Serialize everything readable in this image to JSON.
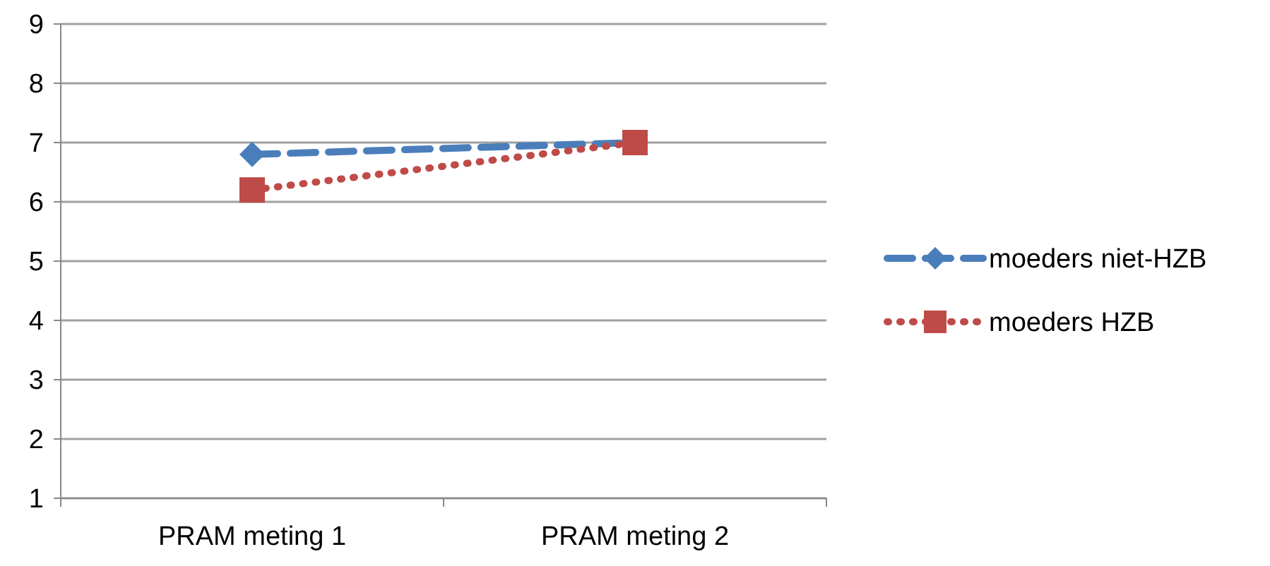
{
  "chart_data": {
    "type": "line",
    "categories": [
      "PRAM meting 1",
      "PRAM meting 2"
    ],
    "series": [
      {
        "name": "moeders niet-HZB",
        "color": "#4a7ebb",
        "values": [
          6.8,
          7.0
        ],
        "marker": "diamond",
        "line_style": "dashed"
      },
      {
        "name": "moeders HZB",
        "color": "#be4b48",
        "values": [
          6.2,
          7.0
        ],
        "marker": "square",
        "line_style": "dotted"
      }
    ],
    "ylim": [
      1,
      9
    ],
    "yticks": [
      1,
      2,
      3,
      4,
      5,
      6,
      7,
      8,
      9
    ],
    "grid": "y",
    "legend": "right"
  }
}
